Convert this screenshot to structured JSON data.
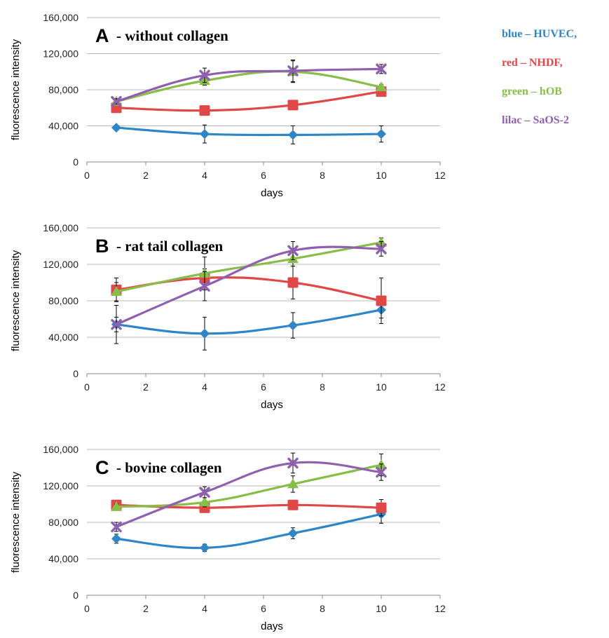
{
  "legend": [
    {
      "text": "blue – HUVEC,",
      "color": "#2e86c8"
    },
    {
      "text": "red – NHDF,",
      "color": "#e04848"
    },
    {
      "text": "green – hOB",
      "color": "#88bd48"
    },
    {
      "text": "lilac – SaOS-2",
      "color": "#9060b0"
    }
  ],
  "chart_data": [
    {
      "type": "line",
      "panel": "A",
      "title": "- without collagen",
      "xlabel": "days",
      "ylabel": "fluorescence intensity",
      "xlim": [
        0,
        12
      ],
      "ylim": [
        0,
        160000
      ],
      "x_ticks": [
        "0",
        "2",
        "4",
        "6",
        "8",
        "10",
        "12"
      ],
      "y_ticks": [
        "0",
        "40,000",
        "80,000",
        "120,000",
        "160,000"
      ],
      "grid": "horizontal",
      "x": [
        1,
        4,
        7,
        10
      ],
      "series": [
        {
          "marker": "diamond",
          "color": "#2e86c8",
          "values": [
            38000,
            31000,
            30000,
            31000
          ],
          "err": [
            2000,
            10000,
            10000,
            9000
          ]
        },
        {
          "marker": "square",
          "color": "#e04848",
          "values": [
            60000,
            57000,
            63000,
            78000
          ],
          "err": [
            3000,
            3000,
            3000,
            3000
          ]
        },
        {
          "marker": "triangle",
          "color": "#88bd48",
          "values": [
            67000,
            90000,
            100000,
            83000
          ],
          "err": [
            3000,
            5000,
            12000,
            3000
          ]
        },
        {
          "marker": "x",
          "color": "#9060b0",
          "values": [
            67000,
            96000,
            101000,
            103000
          ],
          "err": [
            3000,
            8000,
            12000,
            5000
          ]
        }
      ]
    },
    {
      "type": "line",
      "panel": "B",
      "title": "- rat tail collagen",
      "xlabel": "days",
      "ylabel": "fluorescence intensity",
      "xlim": [
        0,
        12
      ],
      "ylim": [
        0,
        160000
      ],
      "x_ticks": [
        "0",
        "2",
        "4",
        "6",
        "8",
        "10",
        "12"
      ],
      "y_ticks": [
        "0",
        "40,000",
        "80,000",
        "120,000",
        "160,000"
      ],
      "grid": "horizontal",
      "x": [
        1,
        4,
        7,
        10
      ],
      "series": [
        {
          "marker": "diamond",
          "color": "#2e86c8",
          "values": [
            54000,
            44000,
            53000,
            70000
          ],
          "err": [
            21000,
            18000,
            14000,
            9000
          ]
        },
        {
          "marker": "square",
          "color": "#e04848",
          "values": [
            92000,
            105000,
            100000,
            80000
          ],
          "err": [
            13000,
            10000,
            18000,
            25000
          ]
        },
        {
          "marker": "triangle",
          "color": "#88bd48",
          "values": [
            90000,
            110000,
            126000,
            144000
          ],
          "err": [
            10000,
            18000,
            8000,
            5000
          ]
        },
        {
          "marker": "x",
          "color": "#9060b0",
          "values": [
            54000,
            96000,
            135000,
            137000
          ],
          "err": [
            8000,
            16000,
            10000,
            8000
          ]
        }
      ]
    },
    {
      "type": "line",
      "panel": "C",
      "title": "- bovine collagen",
      "xlabel": "days",
      "ylabel": "fluorescence intensity",
      "xlim": [
        0,
        12
      ],
      "ylim": [
        0,
        160000
      ],
      "x_ticks": [
        "0",
        "2",
        "4",
        "6",
        "8",
        "10",
        "12"
      ],
      "y_ticks": [
        "0",
        "40,000",
        "80,000",
        "120,000",
        "160,000"
      ],
      "grid": "horizontal",
      "x": [
        1,
        4,
        7,
        10
      ],
      "series": [
        {
          "marker": "diamond",
          "color": "#2e86c8",
          "values": [
            62000,
            52000,
            68000,
            89000
          ],
          "err": [
            5000,
            4000,
            6000,
            10000
          ]
        },
        {
          "marker": "square",
          "color": "#e04848",
          "values": [
            99000,
            96000,
            99000,
            96000
          ],
          "err": [
            3000,
            3000,
            5000,
            9000
          ]
        },
        {
          "marker": "triangle",
          "color": "#88bd48",
          "values": [
            97000,
            102000,
            122000,
            143000
          ],
          "err": [
            3000,
            5000,
            9000,
            12000
          ]
        },
        {
          "marker": "x",
          "color": "#9060b0",
          "values": [
            75000,
            113000,
            145000,
            135000
          ],
          "err": [
            5000,
            6000,
            11000,
            9000
          ]
        }
      ]
    }
  ]
}
